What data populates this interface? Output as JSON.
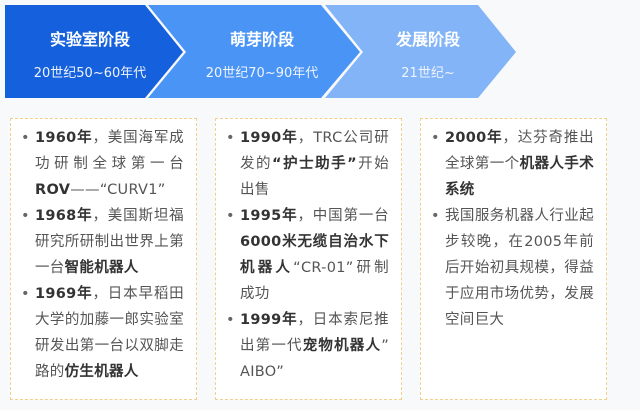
{
  "colors": {
    "stage1": "#1560dc",
    "stage2": "#4a94f5",
    "stage3": "#82b4f7",
    "box_border": "#f3cf8e"
  },
  "stages": [
    {
      "title": "实验室阶段",
      "period": "20世纪50~60年代"
    },
    {
      "title": "萌芽阶段",
      "period": "20世纪70~90年代"
    },
    {
      "title": "发展阶段",
      "period": "21世纪~"
    }
  ],
  "boxes": [
    {
      "items": [
        [
          {
            "t": "1960年",
            "b": true
          },
          {
            "t": "，美国海军成功研制全球第一台"
          },
          {
            "t": "ROV",
            "b": true
          },
          {
            "t": "——“CURV1”"
          }
        ],
        [
          {
            "t": "1968年",
            "b": true
          },
          {
            "t": "，美国斯坦福研究所研制出世界上第一台"
          },
          {
            "t": "智能机器人",
            "b": true
          }
        ],
        [
          {
            "t": "1969年",
            "b": true
          },
          {
            "t": "，日本早稻田大学的加藤一郎实验室研发出第一台以双脚走路的"
          },
          {
            "t": "仿生机器人",
            "b": true
          }
        ]
      ]
    },
    {
      "items": [
        [
          {
            "t": "1990年",
            "b": true
          },
          {
            "t": "，TRC公司研发的"
          },
          {
            "t": "“护士助手”",
            "b": true
          },
          {
            "t": "开始出售"
          }
        ],
        [
          {
            "t": "1995年",
            "b": true
          },
          {
            "t": "，中国第一台"
          },
          {
            "t": "6000米无缆自治水下机器人",
            "b": true
          },
          {
            "t": "“CR-01”研制成功"
          }
        ],
        [
          {
            "t": "1999年",
            "b": true
          },
          {
            "t": "，日本索尼推出第一代"
          },
          {
            "t": "宠物机器人",
            "b": true
          },
          {
            "t": "” AIBO”"
          }
        ]
      ]
    },
    {
      "items": [
        [
          {
            "t": "2000年",
            "b": true
          },
          {
            "t": "，达芬奇推出全球第一个"
          },
          {
            "t": "机器人手术系统",
            "b": true
          }
        ],
        [
          {
            "t": "我国服务机器人行业起步较晚，在2005年前后开始初具规模，得益于应用市场优势，发展空间巨大"
          }
        ]
      ]
    }
  ]
}
